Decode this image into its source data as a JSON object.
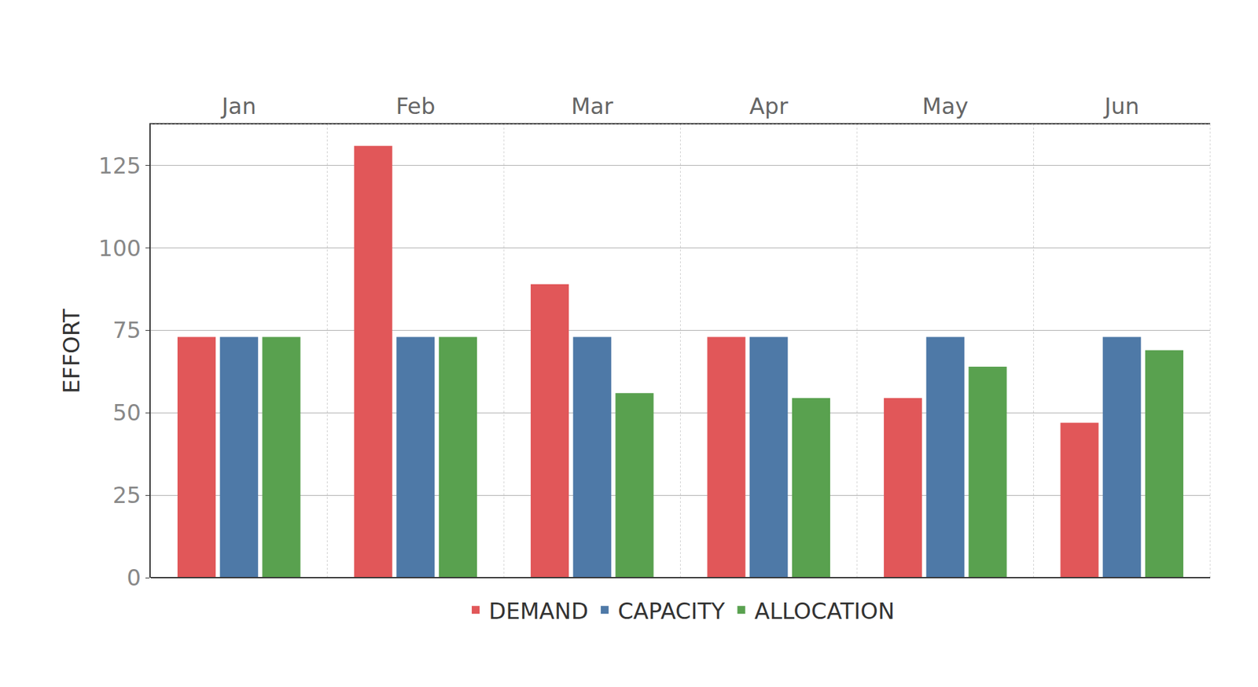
{
  "chart_data": {
    "type": "bar",
    "y_label": "EFFORT",
    "categories": [
      "Jan",
      "Feb",
      "Mar",
      "Apr",
      "May",
      "Jun"
    ],
    "series": [
      {
        "name": "DEMAND",
        "color": "#e15759",
        "values": [
          73,
          131,
          89,
          73,
          54.5,
          47
        ]
      },
      {
        "name": "CAPACITY",
        "color": "#4e79a7",
        "values": [
          73,
          73,
          73,
          73,
          73,
          73
        ]
      },
      {
        "name": "ALLOCATION",
        "color": "#59a14f",
        "values": [
          73,
          73,
          56,
          54.5,
          64,
          69
        ]
      }
    ],
    "ylim": [
      0,
      137.5
    ],
    "yticks": [
      0,
      25,
      50,
      75,
      100,
      125
    ],
    "grid": true,
    "legend": "bottom"
  }
}
